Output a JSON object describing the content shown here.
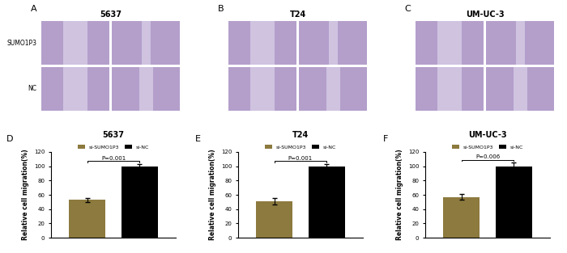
{
  "chart_data": [
    {
      "type": "bar",
      "panel_label": "D",
      "title": "5637",
      "y_label": "Relative cell migration(%)",
      "categories": [
        null
      ],
      "series": [
        {
          "name": "si-SUMO1P3",
          "color": "#8c7a3e",
          "values": [
            53
          ],
          "errors": [
            3
          ]
        },
        {
          "name": "si-NC",
          "color": "#000000",
          "values": [
            100
          ],
          "errors": [
            3
          ]
        }
      ],
      "annotation": "P=0.001",
      "ylim": [
        0,
        120
      ],
      "yticks": [
        0,
        20,
        40,
        60,
        80,
        100,
        120
      ],
      "legend": "top",
      "tick_labels": "y"
    },
    {
      "type": "bar",
      "panel_label": "E",
      "title": "T24",
      "y_label": "Relative cell migration(%)",
      "categories": [
        null
      ],
      "series": [
        {
          "name": "si-SUMO1P3",
          "color": "#8c7a3e",
          "values": [
            51
          ],
          "errors": [
            4
          ]
        },
        {
          "name": "si-NC",
          "color": "#000000",
          "values": [
            100
          ],
          "errors": [
            3
          ]
        }
      ],
      "annotation": "P=0.001",
      "ylim": [
        0,
        120
      ],
      "yticks": [
        0,
        20,
        40,
        60,
        80,
        100,
        120
      ],
      "legend": "top",
      "tick_labels": "y"
    },
    {
      "type": "bar",
      "panel_label": "F",
      "title": "UM-UC-3",
      "y_label": "Relative cell migration(%)",
      "categories": [
        null
      ],
      "series": [
        {
          "name": "si-SUMO1P3",
          "color": "#8c7a3e",
          "values": [
            57
          ],
          "errors": [
            4
          ]
        },
        {
          "name": "si-NC",
          "color": "#000000",
          "values": [
            100
          ],
          "errors": [
            5
          ]
        }
      ],
      "annotation": "P=0.006",
      "ylim": [
        0,
        120
      ],
      "yticks": [
        0,
        20,
        40,
        60,
        80,
        100,
        120
      ],
      "legend": "top",
      "tick_labels": "y"
    }
  ],
  "image_panels": [
    {
      "panel_label": "A",
      "title": "5637",
      "rows": [
        "SUMO1P3",
        "NC"
      ]
    },
    {
      "panel_label": "B",
      "title": "T24"
    },
    {
      "panel_label": "C",
      "title": "UM-UC-3"
    }
  ]
}
